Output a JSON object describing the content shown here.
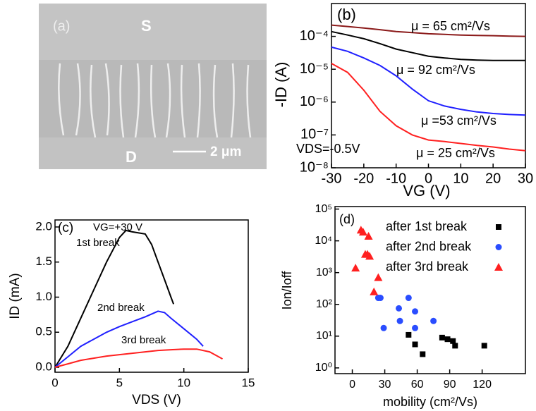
{
  "chart_data": [
    {
      "type": "image",
      "panel_label": "(a)",
      "source_label": "S",
      "drain_label": "D",
      "scale_bar": "2 μm"
    },
    {
      "type": "line",
      "panel_label": "(b)",
      "annotation": "VDS=-0.5V",
      "xlabel": "VG (V)",
      "ylabel": "-ID (A)",
      "ylog": true,
      "x": [
        -30,
        -25,
        -20,
        -15,
        -10,
        -5,
        0,
        5,
        10,
        15,
        20,
        25,
        30
      ],
      "xlim": [
        -30,
        30
      ],
      "xticks": [
        -30,
        -20,
        -10,
        0,
        10,
        20,
        30
      ],
      "ylim": [
        1e-08,
        0.001
      ],
      "yticks": [
        {
          "value": 1e-08,
          "label": "10⁻⁸"
        },
        {
          "value": 1e-07,
          "label": "10⁻⁷"
        },
        {
          "value": 1e-06,
          "label": "10⁻⁶"
        },
        {
          "value": 1e-05,
          "label": "10⁻⁵"
        },
        {
          "value": 0.0001,
          "label": "10⁻⁴"
        }
      ],
      "series": [
        {
          "name": "μ = 65 cm²/Vs",
          "color": "#8b1a1a",
          "values": [
            0.00022,
            0.0002,
            0.00018,
            0.00016,
            0.00014,
            0.00013,
            0.00012,
            0.000115,
            0.00011,
            0.000107,
            0.000105,
            0.000102,
            0.0001
          ]
        },
        {
          "name": "μ = 92 cm²/Vs",
          "color": "#000000",
          "values": [
            0.00014,
            0.00011,
            8.5e-05,
            6e-05,
            4.1e-05,
            3.2e-05,
            2.5e-05,
            2.2e-05,
            2e-05,
            1.9e-05,
            1.85e-05,
            1.85e-05,
            1.85e-05
          ]
        },
        {
          "name": "μ =53 cm²/Vs",
          "color": "#2020ff",
          "values": [
            4.7e-05,
            3.5e-05,
            2.2e-05,
            1.3e-05,
            6.3e-06,
            2.5e-06,
            1.1e-06,
            7.6e-07,
            6e-07,
            5e-07,
            4.5e-07,
            4.2e-07,
            4e-07
          ]
        },
        {
          "name": "μ = 25 cm²/Vs",
          "color": "#ff2020",
          "values": [
            1.5e-05,
            8e-06,
            2.3e-06,
            5.2e-07,
            1.9e-07,
            1e-07,
            7e-08,
            6.3e-08,
            5.5e-08,
            4.8e-08,
            4.3e-08,
            3.7e-08,
            3.3e-08
          ]
        }
      ]
    },
    {
      "type": "line",
      "panel_label": "(c)",
      "annotation": "VG=+30 V",
      "xlabel": "VDS (V)",
      "ylabel": "ID (mA)",
      "ylog": false,
      "xlim": [
        0,
        15
      ],
      "xticks": [
        0,
        5,
        10,
        15
      ],
      "ylim": [
        -0.07,
        2.1
      ],
      "yticks": [
        {
          "value": 0,
          "label": "0.0"
        },
        {
          "value": 0.5,
          "label": "0.5"
        },
        {
          "value": 1,
          "label": "1.0"
        },
        {
          "value": 1.5,
          "label": "1.5"
        },
        {
          "value": 2,
          "label": "2.0"
        }
      ],
      "series": [
        {
          "name": "1st break",
          "color": "#000000",
          "x": [
            0,
            1,
            2,
            3,
            4,
            5,
            5.5,
            6,
            7,
            7.5,
            8,
            8.5,
            9,
            9.2
          ],
          "values": [
            0,
            0.3,
            0.7,
            1.1,
            1.5,
            1.85,
            1.95,
            1.93,
            1.9,
            1.75,
            1.5,
            1.25,
            1.0,
            0.9
          ]
        },
        {
          "name": "2nd break",
          "color": "#2020ff",
          "x": [
            0,
            1,
            2,
            3,
            4,
            5,
            6,
            7,
            8,
            8.5,
            9,
            10,
            11,
            11.5
          ],
          "values": [
            0,
            0.15,
            0.3,
            0.4,
            0.5,
            0.58,
            0.65,
            0.72,
            0.8,
            0.78,
            0.7,
            0.55,
            0.4,
            0.3
          ]
        },
        {
          "name": "3rd break",
          "color": "#ff2020",
          "x": [
            0,
            1,
            2,
            3,
            4,
            5,
            6,
            7,
            8,
            9,
            10,
            11,
            12,
            13
          ],
          "values": [
            0,
            0.05,
            0.1,
            0.13,
            0.16,
            0.18,
            0.2,
            0.22,
            0.24,
            0.25,
            0.26,
            0.26,
            0.22,
            0.12
          ]
        }
      ]
    },
    {
      "type": "scatter",
      "panel_label": "(d)",
      "xlabel": "mobility (cm²/Vs)",
      "ylabel": "Ion/Ioff",
      "ylog": true,
      "legend": "upper right",
      "xlim": [
        -16,
        160
      ],
      "xticks": [
        0,
        30,
        60,
        90,
        120
      ],
      "ylim": [
        0.66,
        120000
      ],
      "yticks": [
        {
          "value": 1,
          "label": "10⁰"
        },
        {
          "value": 10,
          "label": "10¹"
        },
        {
          "value": 100,
          "label": "10²"
        },
        {
          "value": 1000,
          "label": "10³"
        },
        {
          "value": 10000,
          "label": "10⁴"
        },
        {
          "value": 100000,
          "label": "10⁵"
        }
      ],
      "series": [
        {
          "name": "after 1st break",
          "color": "#000000",
          "marker": "square",
          "x": [
            52,
            58,
            65,
            83,
            88,
            93,
            95,
            122
          ],
          "values": [
            11,
            5.5,
            2.7,
            9,
            8,
            7,
            5,
            5
          ]
        },
        {
          "name": "after 2nd break",
          "color": "#2a4dff",
          "marker": "circle",
          "x": [
            24,
            26,
            29,
            43,
            44,
            52,
            58,
            58,
            75
          ],
          "values": [
            160,
            160,
            18,
            75,
            30,
            160,
            60,
            18,
            30
          ]
        },
        {
          "name": "after 3rd break",
          "color": "#ff2020",
          "marker": "triangle",
          "x": [
            3,
            8,
            10,
            12,
            14,
            15,
            16,
            20,
            24
          ],
          "values": [
            1400,
            22000,
            19000,
            3800,
            3800,
            14000,
            3300,
            250,
            700
          ]
        }
      ]
    }
  ]
}
